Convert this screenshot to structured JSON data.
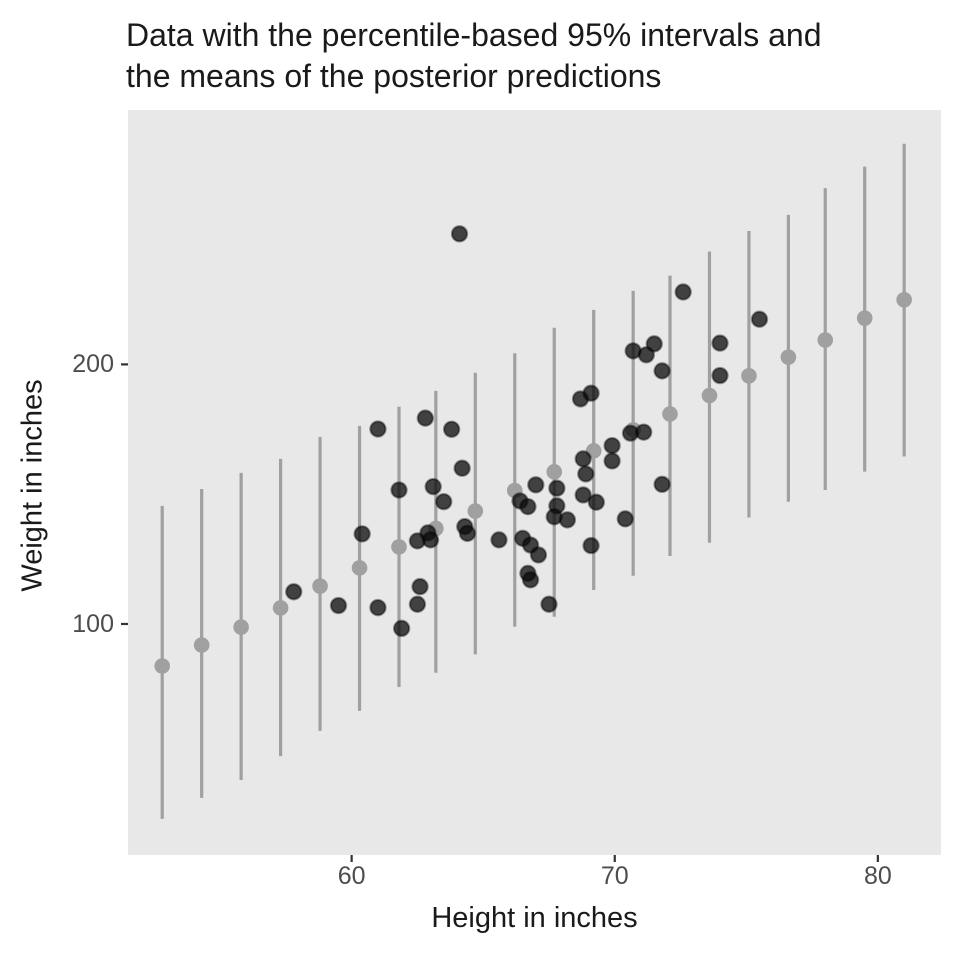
{
  "title": {
    "line1": "Data with the percentile-based 95% intervals and",
    "line2": "the means of the posterior predictions"
  },
  "axes": {
    "x_label": "Height in inches",
    "y_label": "Weight in inches"
  },
  "colors": {
    "panel_bg": "#e8e8e8",
    "interval_line": "#a0a0a0",
    "mean_point": "#a0a0a0",
    "data_point_fill": "rgba(12,12,12,0.76)",
    "data_point_stroke": "rgba(0,0,0,0.40)",
    "tick_mark": "#333333",
    "tick_label": "#4d4d4d",
    "title_text": "#1a1a1a"
  },
  "chart_data": {
    "type": "scatter",
    "title": "Data with the percentile-based 95% intervals and the means of the posterior predictions",
    "xlabel": "Height in inches",
    "ylabel": "Weight in inches",
    "xlim": [
      51.5,
      82.4
    ],
    "ylim": [
      11,
      298
    ],
    "x_ticks": [
      60,
      70,
      80
    ],
    "y_ticks": [
      100,
      200
    ],
    "grid": false,
    "legend": "none",
    "series": [
      {
        "name": "posterior-prediction-intervals",
        "type": "pointrange",
        "columns": [
          "height",
          "lower95",
          "mean",
          "upper95"
        ],
        "values": [
          [
            52.8,
            24.9,
            83.8,
            145.5
          ],
          [
            54.3,
            33.0,
            91.9,
            152.0
          ],
          [
            55.8,
            39.9,
            98.8,
            158.2
          ],
          [
            57.3,
            49.1,
            106.2,
            163.6
          ],
          [
            58.8,
            58.8,
            114.6,
            172.1
          ],
          [
            60.3,
            66.5,
            121.6,
            176.3
          ],
          [
            61.8,
            75.7,
            129.7,
            183.7
          ],
          [
            63.2,
            81.2,
            136.8,
            189.8
          ],
          [
            64.7,
            88.3,
            143.5,
            196.8
          ],
          [
            66.2,
            99.0,
            151.4,
            204.3
          ],
          [
            67.7,
            102.8,
            158.6,
            214.1
          ],
          [
            69.2,
            113.1,
            166.7,
            221.0
          ],
          [
            70.7,
            118.6,
            174.8,
            228.3
          ],
          [
            72.1,
            126.2,
            180.9,
            234.2
          ],
          [
            73.6,
            131.3,
            188.0,
            243.5
          ],
          [
            75.1,
            141.0,
            195.6,
            251.4
          ],
          [
            76.6,
            147.1,
            202.8,
            257.6
          ],
          [
            78.0,
            151.6,
            209.4,
            267.9
          ],
          [
            79.5,
            158.7,
            217.8,
            276.2
          ],
          [
            81.0,
            164.5,
            224.9,
            285.0
          ]
        ]
      },
      {
        "name": "observed-data",
        "type": "scatter",
        "columns": [
          "height",
          "weight"
        ],
        "values": [
          [
            64.1,
            250.3
          ],
          [
            61.0,
            175.1
          ],
          [
            62.8,
            179.3
          ],
          [
            63.8,
            175.0
          ],
          [
            61.8,
            151.6
          ],
          [
            63.1,
            152.9
          ],
          [
            63.5,
            147.1
          ],
          [
            64.2,
            160.0
          ],
          [
            64.3,
            137.5
          ],
          [
            64.4,
            134.9
          ],
          [
            62.5,
            132.0
          ],
          [
            62.9,
            135.1
          ],
          [
            63.0,
            132.4
          ],
          [
            62.6,
            114.4
          ],
          [
            62.5,
            107.6
          ],
          [
            61.9,
            98.3
          ],
          [
            57.8,
            112.4
          ],
          [
            59.5,
            107.1
          ],
          [
            60.4,
            134.7
          ],
          [
            61.0,
            106.3
          ],
          [
            65.6,
            132.4
          ],
          [
            66.4,
            147.4
          ],
          [
            66.7,
            145.2
          ],
          [
            67.0,
            153.6
          ],
          [
            66.5,
            133.0
          ],
          [
            66.8,
            130.4
          ],
          [
            67.1,
            126.6
          ],
          [
            66.7,
            119.5
          ],
          [
            66.8,
            117.0
          ],
          [
            67.5,
            107.6
          ],
          [
            67.8,
            152.3
          ],
          [
            67.8,
            145.5
          ],
          [
            67.7,
            141.3
          ],
          [
            68.2,
            140.1
          ],
          [
            68.8,
            163.6
          ],
          [
            68.9,
            157.8
          ],
          [
            68.8,
            149.7
          ],
          [
            69.3,
            146.9
          ],
          [
            68.7,
            186.7
          ],
          [
            69.1,
            188.9
          ],
          [
            69.9,
            168.7
          ],
          [
            69.9,
            162.8
          ],
          [
            70.4,
            140.5
          ],
          [
            69.1,
            130.2
          ],
          [
            70.6,
            173.5
          ],
          [
            71.1,
            173.9
          ],
          [
            71.8,
            153.8
          ],
          [
            70.7,
            205.2
          ],
          [
            71.2,
            203.7
          ],
          [
            71.5,
            207.9
          ],
          [
            71.8,
            197.5
          ],
          [
            72.6,
            227.9
          ],
          [
            74.0,
            208.2
          ],
          [
            74.0,
            195.7
          ],
          [
            75.5,
            217.4
          ]
        ]
      }
    ]
  }
}
